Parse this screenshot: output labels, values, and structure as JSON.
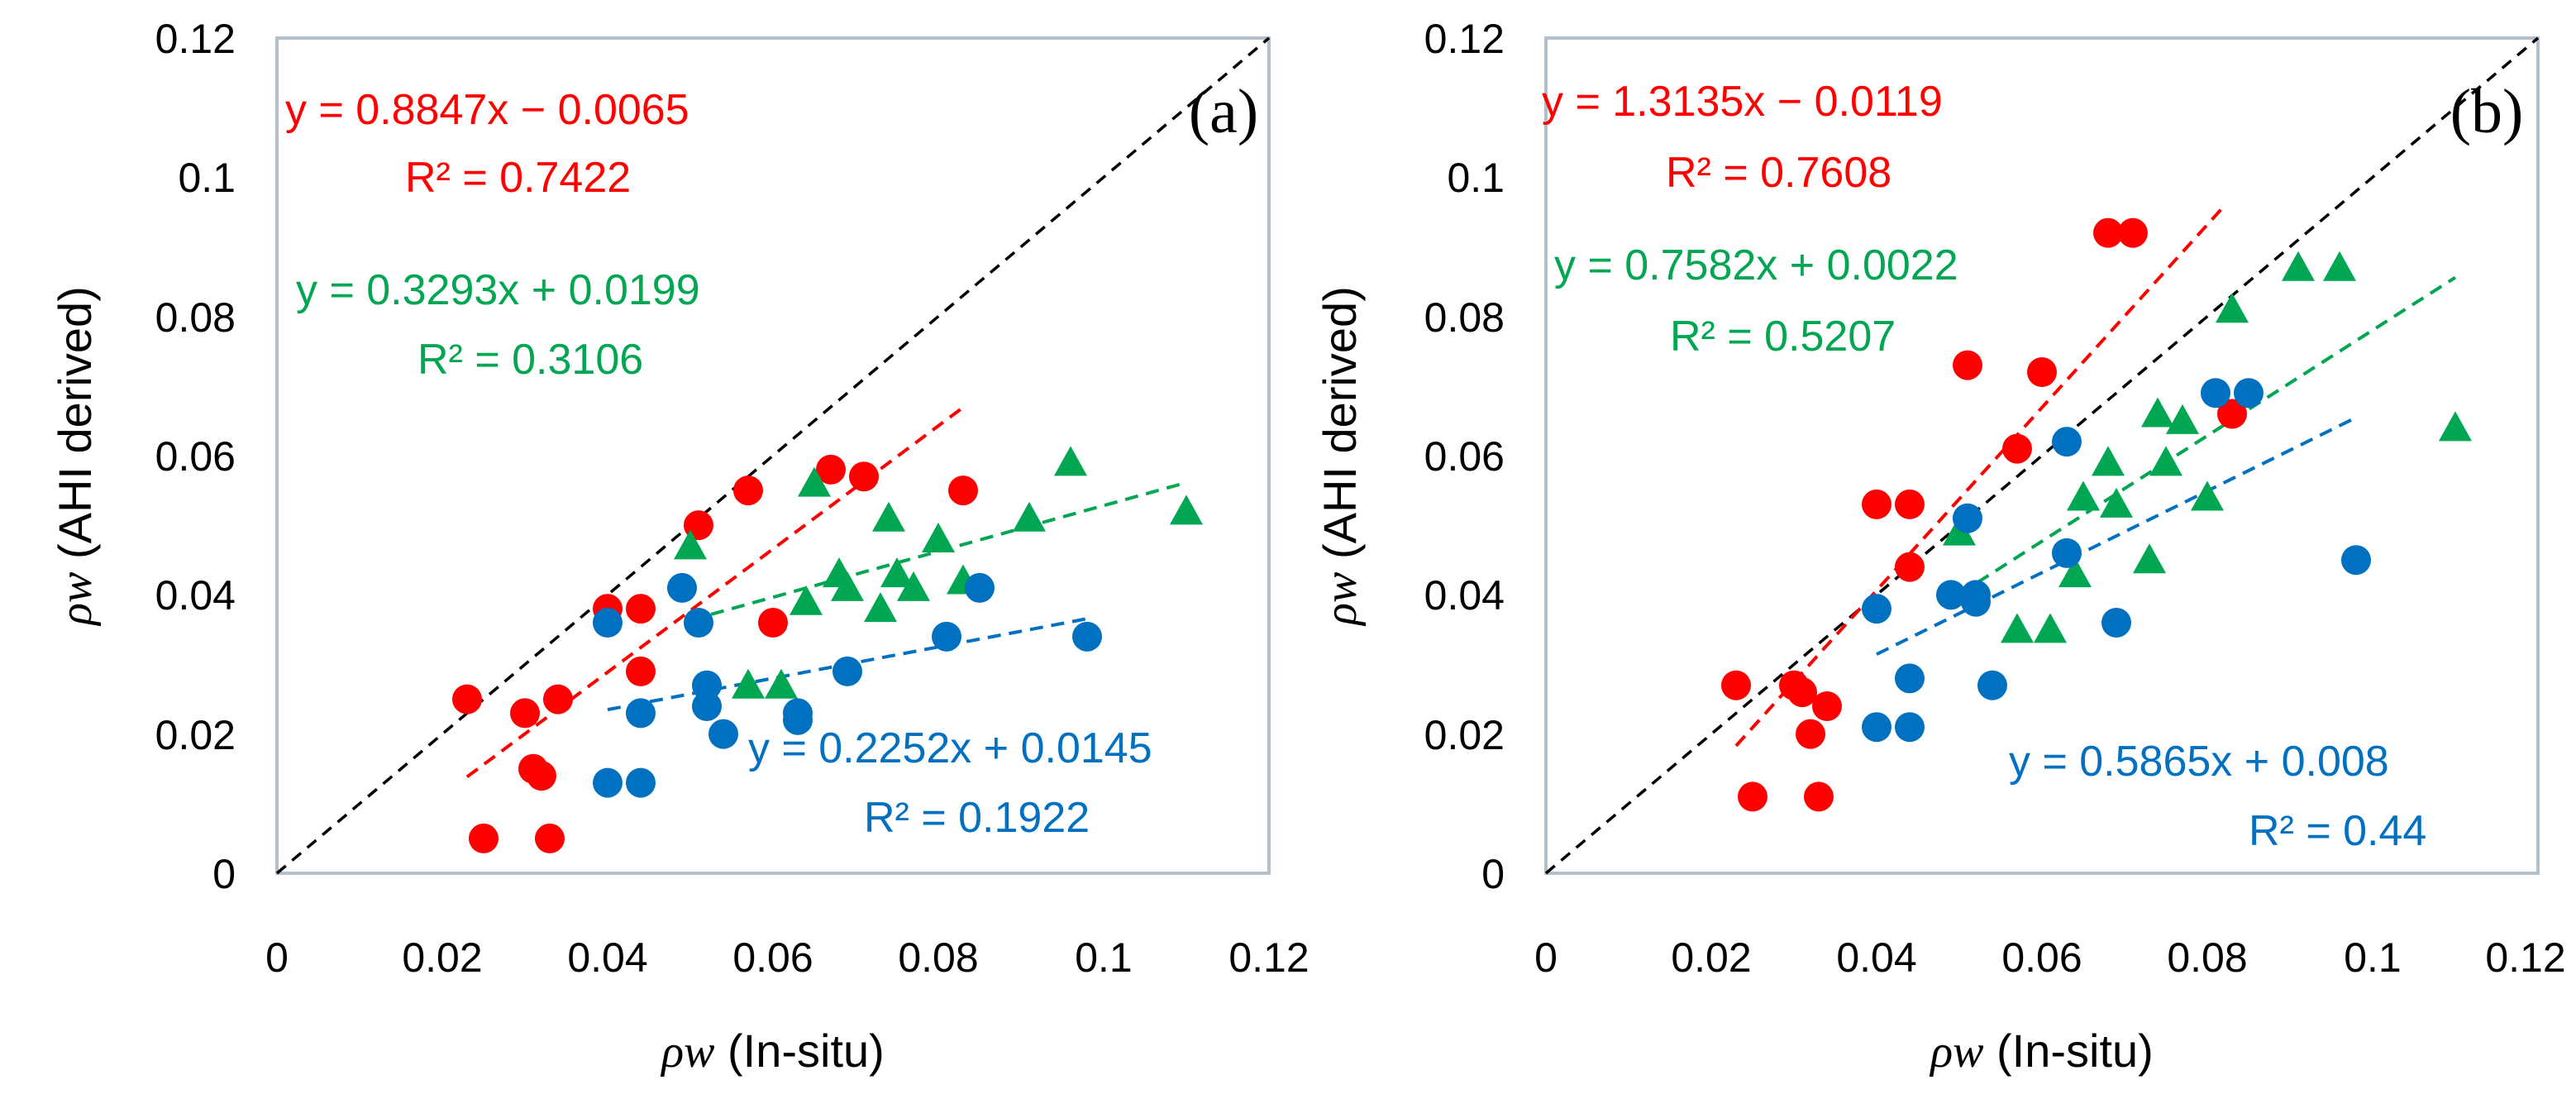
{
  "figure": {
    "colors": {
      "red": "#ff0000",
      "green": "#00a651",
      "blue": "#0070c0",
      "frame": "#b4bfcc",
      "diag": "#000000"
    }
  },
  "chart_data": [
    {
      "type": "scatter",
      "panel_label": "(a)",
      "xlabel_symbol": "ρw",
      "xlabel_text": "(In-situ)",
      "ylabel_symbol": "ρw",
      "ylabel_text": "(AHI derived)",
      "xlim": [
        0,
        0.12
      ],
      "ylim": [
        0,
        0.12
      ],
      "x_ticks": [
        "0",
        "0.02",
        "0.04",
        "0.06",
        "0.08",
        "0.1",
        "0.12"
      ],
      "y_ticks": [
        "0",
        "0.02",
        "0.04",
        "0.06",
        "0.08",
        "0.1",
        "0.12"
      ],
      "grid": false,
      "identity_line": true,
      "series": [
        {
          "name": "red",
          "color": "#ff0000",
          "marker": "circle",
          "equation": "y = 0.8847x − 0.0065",
          "r2": "R² = 0.7422",
          "trend": {
            "slope": 0.8847,
            "intercept": -0.0065,
            "x_range": [
              0.023,
              0.083
            ]
          },
          "x": [
            0.023,
            0.025,
            0.03,
            0.031,
            0.032,
            0.033,
            0.034,
            0.04,
            0.044,
            0.044,
            0.051,
            0.057,
            0.06,
            0.067,
            0.071,
            0.083
          ],
          "y": [
            0.025,
            0.005,
            0.023,
            0.015,
            0.014,
            0.005,
            0.025,
            0.038,
            0.038,
            0.029,
            0.05,
            0.055,
            0.036,
            0.058,
            0.057,
            0.055
          ]
        },
        {
          "name": "green",
          "color": "#00a651",
          "marker": "triangle",
          "equation": "y = 0.3293x + 0.0199",
          "r2": "R² = 0.3106",
          "trend": {
            "slope": 0.3293,
            "intercept": 0.0199,
            "x_range": [
              0.05,
              0.11
            ]
          },
          "x": [
            0.05,
            0.057,
            0.061,
            0.064,
            0.065,
            0.068,
            0.069,
            0.073,
            0.074,
            0.075,
            0.077,
            0.08,
            0.083,
            0.091,
            0.096,
            0.11
          ],
          "y": [
            0.047,
            0.027,
            0.027,
            0.039,
            0.056,
            0.043,
            0.041,
            0.038,
            0.051,
            0.043,
            0.041,
            0.048,
            0.042,
            0.051,
            0.059,
            0.052
          ]
        },
        {
          "name": "blue",
          "color": "#0070c0",
          "marker": "circle",
          "equation": "y = 0.2252x + 0.0145",
          "r2": "R² = 0.1922",
          "trend": {
            "slope": 0.2252,
            "intercept": 0.0145,
            "x_range": [
              0.04,
              0.098
            ]
          },
          "x": [
            0.04,
            0.04,
            0.044,
            0.044,
            0.049,
            0.051,
            0.052,
            0.052,
            0.054,
            0.063,
            0.063,
            0.069,
            0.081,
            0.085,
            0.098
          ],
          "y": [
            0.036,
            0.013,
            0.013,
            0.023,
            0.041,
            0.036,
            0.027,
            0.024,
            0.02,
            0.023,
            0.022,
            0.029,
            0.034,
            0.041,
            0.034
          ]
        }
      ]
    },
    {
      "type": "scatter",
      "panel_label": "(b)",
      "xlabel_symbol": "ρw",
      "xlabel_text": "(In-situ)",
      "ylabel_symbol": "ρw",
      "ylabel_text": "(AHI derived)",
      "xlim": [
        0,
        0.12
      ],
      "ylim": [
        0,
        0.12
      ],
      "x_ticks": [
        "0",
        "0.02",
        "0.04",
        "0.06",
        "0.08",
        "0.1",
        "0.12"
      ],
      "y_ticks": [
        "0",
        "0.02",
        "0.04",
        "0.06",
        "0.08",
        "0.1",
        "0.12"
      ],
      "grid": false,
      "identity_line": true,
      "series": [
        {
          "name": "red",
          "color": "#ff0000",
          "marker": "circle",
          "equation": "y = 1.3135x − 0.0119",
          "r2": "R² = 0.7608",
          "trend": {
            "slope": 1.3135,
            "intercept": -0.0119,
            "x_range": [
              0.023,
              0.082
            ]
          },
          "x": [
            0.023,
            0.025,
            0.03,
            0.031,
            0.032,
            0.033,
            0.034,
            0.04,
            0.044,
            0.044,
            0.051,
            0.057,
            0.06,
            0.068,
            0.071,
            0.083
          ],
          "y": [
            0.027,
            0.011,
            0.027,
            0.026,
            0.02,
            0.011,
            0.024,
            0.053,
            0.053,
            0.044,
            0.073,
            0.061,
            0.072,
            0.092,
            0.092,
            0.066
          ]
        },
        {
          "name": "green",
          "color": "#00a651",
          "marker": "triangle",
          "equation": "y = 0.7582x + 0.0022",
          "r2": "R² = 0.5207",
          "trend": {
            "slope": 0.7582,
            "intercept": 0.0022,
            "x_range": [
              0.05,
              0.11
            ]
          },
          "x": [
            0.05,
            0.057,
            0.061,
            0.064,
            0.065,
            0.068,
            0.069,
            0.073,
            0.074,
            0.075,
            0.077,
            0.08,
            0.083,
            0.091,
            0.096,
            0.11
          ],
          "y": [
            0.049,
            0.035,
            0.035,
            0.043,
            0.054,
            0.059,
            0.053,
            0.045,
            0.066,
            0.059,
            0.065,
            0.054,
            0.081,
            0.087,
            0.087,
            0.064
          ]
        },
        {
          "name": "blue",
          "color": "#0070c0",
          "marker": "circle",
          "equation": "y = 0.5865x + 0.008",
          "r2": "R² = 0.44",
          "trend": {
            "slope": 0.5865,
            "intercept": 0.008,
            "x_range": [
              0.04,
              0.098
            ]
          },
          "x": [
            0.04,
            0.04,
            0.044,
            0.044,
            0.049,
            0.051,
            0.052,
            0.052,
            0.054,
            0.063,
            0.063,
            0.069,
            0.081,
            0.085,
            0.098
          ],
          "y": [
            0.038,
            0.021,
            0.021,
            0.028,
            0.04,
            0.051,
            0.04,
            0.039,
            0.027,
            0.062,
            0.046,
            0.036,
            0.069,
            0.069,
            0.045
          ]
        }
      ]
    }
  ]
}
